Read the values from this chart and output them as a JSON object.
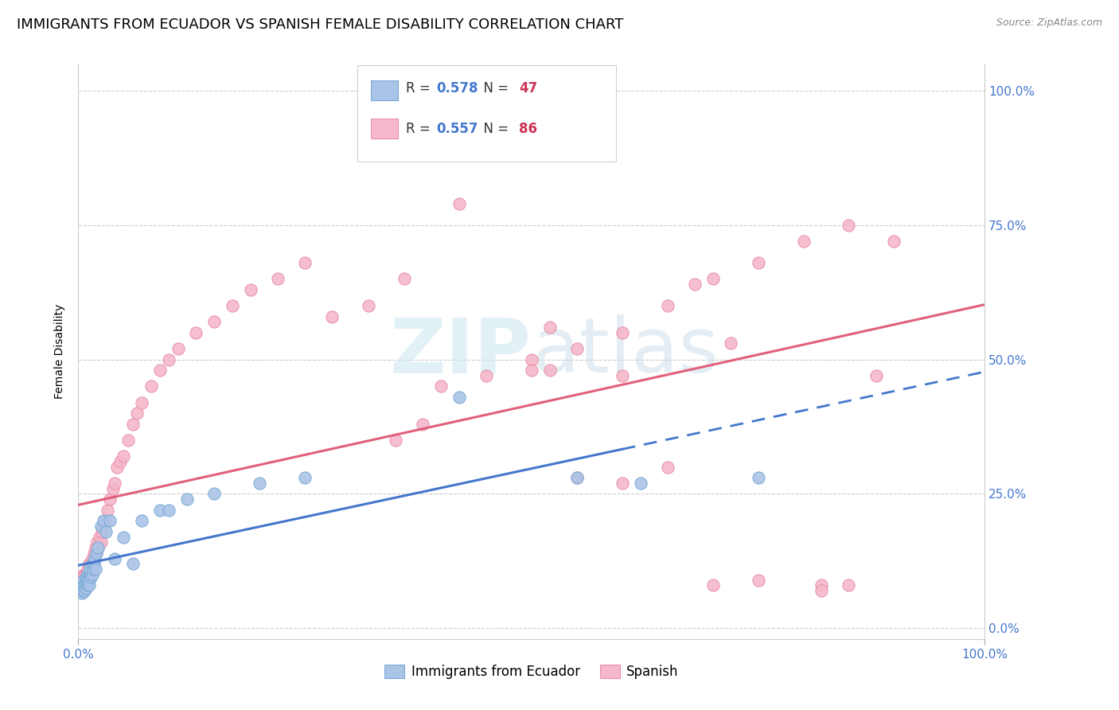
{
  "title": "IMMIGRANTS FROM ECUADOR VS SPANISH FEMALE DISABILITY CORRELATION CHART",
  "source": "Source: ZipAtlas.com",
  "ylabel": "Female Disability",
  "watermark_zip": "ZIP",
  "watermark_atlas": "atlas",
  "xlim": [
    0,
    1
  ],
  "ylim": [
    -0.02,
    1.05
  ],
  "ytick_labels": [
    "0.0%",
    "25.0%",
    "50.0%",
    "75.0%",
    "100.0%"
  ],
  "ytick_values": [
    0,
    0.25,
    0.5,
    0.75,
    1.0
  ],
  "xtick_labels": [
    "0.0%",
    "100.0%"
  ],
  "ecuador_R": 0.578,
  "ecuador_N": 47,
  "spanish_R": 0.557,
  "spanish_N": 86,
  "ecuador_color": "#aac4e8",
  "spanish_color": "#f5b8cb",
  "ecuador_edge_color": "#7aaad4",
  "spanish_edge_color": "#e890a8",
  "ecuador_line_color": "#4477cc",
  "spanish_line_color": "#e0607a",
  "legend_label_ecuador": "Immigrants from Ecuador",
  "legend_label_spanish": "Spanish",
  "background_color": "#ffffff",
  "grid_color": "#cccccc",
  "title_fontsize": 13,
  "axis_label_fontsize": 10,
  "tick_fontsize": 11,
  "legend_fontsize": 12,
  "right_tick_color": "#4477cc",
  "r_value_color": "#4477cc",
  "n_value_color": "#cc3355",
  "ecuador_scatter_x": [
    0.003,
    0.004,
    0.005,
    0.005,
    0.006,
    0.006,
    0.007,
    0.007,
    0.008,
    0.008,
    0.009,
    0.009,
    0.01,
    0.01,
    0.011,
    0.011,
    0.012,
    0.012,
    0.013,
    0.013,
    0.014,
    0.015,
    0.015,
    0.016,
    0.017,
    0.018,
    0.019,
    0.02,
    0.022,
    0.025,
    0.028,
    0.03,
    0.035,
    0.04,
    0.05,
    0.06,
    0.07,
    0.09,
    0.1,
    0.12,
    0.15,
    0.2,
    0.25,
    0.42,
    0.55,
    0.62,
    0.75
  ],
  "ecuador_scatter_y": [
    0.075,
    0.065,
    0.08,
    0.07,
    0.085,
    0.09,
    0.07,
    0.08,
    0.075,
    0.085,
    0.09,
    0.095,
    0.08,
    0.1,
    0.085,
    0.09,
    0.08,
    0.1,
    0.1,
    0.11,
    0.095,
    0.1,
    0.12,
    0.11,
    0.12,
    0.13,
    0.11,
    0.14,
    0.15,
    0.19,
    0.2,
    0.18,
    0.2,
    0.13,
    0.17,
    0.12,
    0.2,
    0.22,
    0.22,
    0.24,
    0.25,
    0.27,
    0.28,
    0.43,
    0.28,
    0.27,
    0.28
  ],
  "spanish_scatter_x": [
    0.001,
    0.002,
    0.003,
    0.004,
    0.005,
    0.005,
    0.006,
    0.007,
    0.007,
    0.008,
    0.008,
    0.009,
    0.01,
    0.01,
    0.011,
    0.012,
    0.012,
    0.013,
    0.014,
    0.015,
    0.015,
    0.016,
    0.017,
    0.018,
    0.019,
    0.02,
    0.021,
    0.022,
    0.023,
    0.025,
    0.026,
    0.028,
    0.03,
    0.032,
    0.035,
    0.038,
    0.04,
    0.043,
    0.046,
    0.05,
    0.055,
    0.06,
    0.065,
    0.07,
    0.08,
    0.09,
    0.1,
    0.11,
    0.13,
    0.15,
    0.17,
    0.19,
    0.22,
    0.25,
    0.28,
    0.32,
    0.36,
    0.4,
    0.45,
    0.5,
    0.55,
    0.6,
    0.65,
    0.7,
    0.75,
    0.8,
    0.85,
    0.9,
    0.35,
    0.38,
    0.42,
    0.5,
    0.52,
    0.6,
    0.68,
    0.72,
    0.82,
    0.85,
    0.52,
    0.55,
    0.6,
    0.65,
    0.7,
    0.75,
    0.82,
    0.88
  ],
  "spanish_scatter_y": [
    0.07,
    0.08,
    0.085,
    0.09,
    0.08,
    0.095,
    0.1,
    0.09,
    0.1,
    0.085,
    0.1,
    0.1,
    0.09,
    0.11,
    0.1,
    0.1,
    0.12,
    0.11,
    0.12,
    0.11,
    0.13,
    0.12,
    0.14,
    0.13,
    0.15,
    0.14,
    0.16,
    0.15,
    0.17,
    0.16,
    0.18,
    0.19,
    0.2,
    0.22,
    0.24,
    0.26,
    0.27,
    0.3,
    0.31,
    0.32,
    0.35,
    0.38,
    0.4,
    0.42,
    0.45,
    0.48,
    0.5,
    0.52,
    0.55,
    0.57,
    0.6,
    0.63,
    0.65,
    0.68,
    0.58,
    0.6,
    0.65,
    0.45,
    0.47,
    0.5,
    0.52,
    0.55,
    0.6,
    0.65,
    0.68,
    0.72,
    0.75,
    0.72,
    0.35,
    0.38,
    0.79,
    0.48,
    0.48,
    0.47,
    0.64,
    0.53,
    0.08,
    0.08,
    0.56,
    0.28,
    0.27,
    0.3,
    0.08,
    0.09,
    0.07,
    0.47
  ]
}
